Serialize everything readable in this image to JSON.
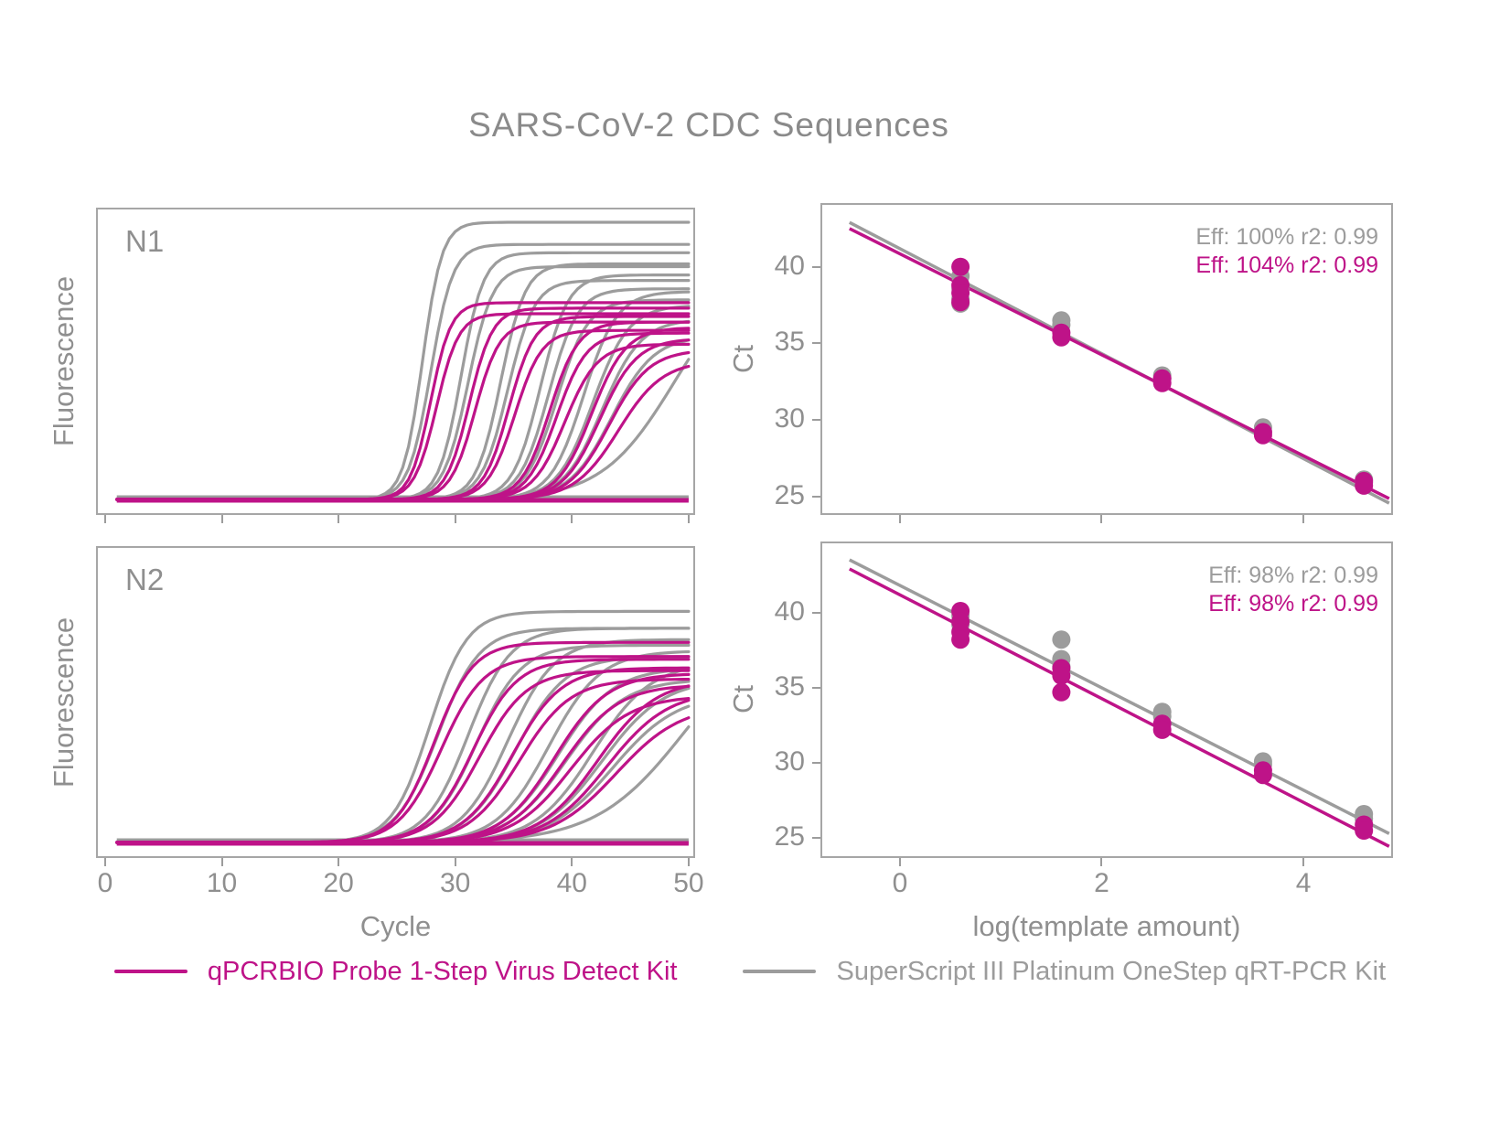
{
  "title": "SARS-CoV-2 CDC Sequences",
  "colors": {
    "magenta": "#BE1388",
    "gray": "#9C9C9C",
    "text_gray": "#8F8F8F",
    "panel_border": "#A6A6A6"
  },
  "legend": {
    "items": [
      {
        "key": "magenta",
        "label": "qPCRBIO Probe 1-Step Virus Detect Kit"
      },
      {
        "key": "gray",
        "label": "SuperScript III Platinum OneStep qRT-PCR Kit"
      }
    ]
  },
  "chart_data": [
    {
      "id": "amplification_n1",
      "type": "line",
      "panel_label": "N1",
      "xlabel": "Cycle",
      "ylabel": "Fluorescence",
      "xlim": [
        -0.62,
        50.4
      ],
      "xticks": [
        0,
        10,
        20,
        30,
        40,
        50
      ],
      "yticks": [],
      "grid": false,
      "curve_format": [
        "ct_midpoint_cycle",
        "steepness",
        "plateau_fraction"
      ],
      "series": [
        {
          "kit": "gray",
          "curves": [
            [
              27.2,
              1.2,
              1.0
            ],
            [
              27.9,
              1.05,
              0.92
            ],
            [
              30.5,
              1.05,
              0.89
            ],
            [
              31.1,
              0.95,
              0.84
            ],
            [
              33.9,
              0.95,
              0.85
            ],
            [
              34.5,
              0.88,
              0.79
            ],
            [
              37.3,
              0.85,
              0.81
            ],
            [
              38.0,
              0.8,
              0.76
            ],
            [
              38.7,
              0.75,
              0.72
            ],
            [
              41.0,
              0.7,
              0.75
            ],
            [
              41.8,
              0.65,
              0.7
            ],
            [
              42.6,
              0.6,
              0.65
            ],
            [
              43.4,
              0.55,
              0.59
            ],
            [
              48.8,
              0.32,
              0.85
            ]
          ],
          "flat_baselines": [
            -3,
            -1
          ]
        },
        {
          "kit": "magenta",
          "curves": [
            [
              27.9,
              1.15,
              0.71
            ],
            [
              28.4,
              1.05,
              0.67
            ],
            [
              31.2,
              1.0,
              0.69
            ],
            [
              31.7,
              0.95,
              0.64
            ],
            [
              34.6,
              0.92,
              0.66
            ],
            [
              35.1,
              0.86,
              0.61
            ],
            [
              38.1,
              0.82,
              0.64
            ],
            [
              38.7,
              0.78,
              0.6
            ],
            [
              39.4,
              0.72,
              0.56
            ],
            [
              41.7,
              0.68,
              0.62
            ],
            [
              42.4,
              0.63,
              0.58
            ],
            [
              43.2,
              0.58,
              0.54
            ],
            [
              44.0,
              0.53,
              0.5
            ]
          ],
          "flat_baselines": [
            0,
            2
          ]
        }
      ]
    },
    {
      "id": "standard_curve_n1",
      "type": "scatter",
      "xlabel": "log(template amount)",
      "ylabel": "Ct",
      "xlim": [
        -0.77,
        4.87
      ],
      "ylim": [
        23.9,
        44.05
      ],
      "xticks": [
        0,
        2,
        4
      ],
      "yticks": [
        25,
        30,
        35,
        40
      ],
      "grid": false,
      "annotations": [
        {
          "kit": "gray",
          "text": "Eff: 100% r2: 0.99"
        },
        {
          "kit": "magenta",
          "text": "Eff: 104% r2: 0.99"
        }
      ],
      "points_format": [
        "log_template_amount",
        "ct"
      ],
      "series": [
        {
          "kit": "gray",
          "points": [
            [
              0.6,
              39.4
            ],
            [
              0.6,
              38.6
            ],
            [
              0.6,
              37.9
            ],
            [
              0.6,
              37.6
            ],
            [
              1.6,
              36.5
            ],
            [
              1.6,
              36.2
            ],
            [
              2.6,
              32.9
            ],
            [
              2.6,
              32.7
            ],
            [
              3.6,
              29.5
            ],
            [
              3.6,
              29.2
            ],
            [
              4.6,
              26.1
            ],
            [
              4.6,
              25.9
            ]
          ],
          "fit_line": {
            "x": [
              -0.5,
              4.85
            ],
            "ct": [
              42.9,
              24.55
            ]
          }
        },
        {
          "kit": "magenta",
          "points": [
            [
              0.6,
              40.0
            ],
            [
              0.6,
              38.8
            ],
            [
              0.6,
              38.3
            ],
            [
              0.6,
              37.7
            ],
            [
              1.6,
              35.7
            ],
            [
              1.6,
              35.4
            ],
            [
              2.6,
              32.7
            ],
            [
              2.6,
              32.4
            ],
            [
              3.6,
              29.2
            ],
            [
              3.6,
              29.0
            ],
            [
              4.6,
              26.0
            ],
            [
              4.6,
              25.7
            ]
          ],
          "fit_line": {
            "x": [
              -0.5,
              4.85
            ],
            "ct": [
              42.5,
              24.85
            ]
          }
        }
      ]
    },
    {
      "id": "amplification_n2",
      "type": "line",
      "panel_label": "N2",
      "xlabel": "Cycle",
      "ylabel": "Fluorescence",
      "xlim": [
        -0.62,
        50.4
      ],
      "xticks": [
        0,
        10,
        20,
        30,
        40,
        50
      ],
      "yticks": [],
      "grid": false,
      "curve_format": [
        "ct_midpoint_cycle",
        "steepness",
        "plateau_fraction"
      ],
      "series": [
        {
          "kit": "gray",
          "curves": [
            [
              27.8,
              0.62,
              0.82
            ],
            [
              28.5,
              0.56,
              0.76
            ],
            [
              31.1,
              0.55,
              0.76
            ],
            [
              31.8,
              0.52,
              0.7
            ],
            [
              34.5,
              0.5,
              0.72
            ],
            [
              35.2,
              0.47,
              0.66
            ],
            [
              38.0,
              0.45,
              0.68
            ],
            [
              38.8,
              0.42,
              0.62
            ],
            [
              39.5,
              0.4,
              0.58
            ],
            [
              41.8,
              0.4,
              0.64
            ],
            [
              42.6,
              0.38,
              0.58
            ],
            [
              43.5,
              0.36,
              0.53
            ],
            [
              49.8,
              0.26,
              0.8
            ]
          ],
          "flat_baselines": [
            -3,
            -1
          ]
        },
        {
          "kit": "magenta",
          "curves": [
            [
              28.2,
              0.6,
              0.71
            ],
            [
              28.8,
              0.55,
              0.66
            ],
            [
              31.5,
              0.53,
              0.65
            ],
            [
              32.1,
              0.5,
              0.61
            ],
            [
              34.9,
              0.48,
              0.62
            ],
            [
              35.5,
              0.46,
              0.58
            ],
            [
              38.5,
              0.44,
              0.6
            ],
            [
              39.2,
              0.42,
              0.56
            ],
            [
              39.9,
              0.4,
              0.52
            ],
            [
              42.2,
              0.4,
              0.58
            ],
            [
              43.0,
              0.38,
              0.54
            ],
            [
              43.8,
              0.36,
              0.49
            ]
          ],
          "flat_baselines": [
            0,
            2
          ]
        }
      ]
    },
    {
      "id": "standard_curve_n2",
      "type": "scatter",
      "xlabel": "log(template amount)",
      "ylabel": "Ct",
      "xlim": [
        -0.77,
        4.87
      ],
      "ylim": [
        23.8,
        44.6
      ],
      "xticks": [
        0,
        2,
        4
      ],
      "yticks": [
        25,
        30,
        35,
        40
      ],
      "grid": false,
      "annotations": [
        {
          "kit": "gray",
          "text": "Eff: 98% r2: 0.99"
        },
        {
          "kit": "magenta",
          "text": "Eff: 98% r2: 0.99"
        }
      ],
      "points_format": [
        "log_template_amount",
        "ct"
      ],
      "series": [
        {
          "kit": "gray",
          "points": [
            [
              0.6,
              39.8
            ],
            [
              0.6,
              39.2
            ],
            [
              1.6,
              38.2
            ],
            [
              1.6,
              36.9
            ],
            [
              1.6,
              36.4
            ],
            [
              2.6,
              33.4
            ],
            [
              2.6,
              33.1
            ],
            [
              3.6,
              30.1
            ],
            [
              3.6,
              29.9
            ],
            [
              4.6,
              26.6
            ],
            [
              4.6,
              26.3
            ]
          ],
          "fit_line": {
            "x": [
              -0.5,
              4.85
            ],
            "ct": [
              43.5,
              25.3
            ]
          }
        },
        {
          "kit": "magenta",
          "points": [
            [
              0.6,
              40.1
            ],
            [
              0.6,
              39.4
            ],
            [
              0.6,
              38.7
            ],
            [
              0.6,
              38.2
            ],
            [
              1.6,
              36.3
            ],
            [
              1.6,
              35.8
            ],
            [
              1.6,
              34.7
            ],
            [
              2.6,
              32.6
            ],
            [
              2.6,
              32.2
            ],
            [
              3.6,
              29.5
            ],
            [
              3.6,
              29.2
            ],
            [
              4.6,
              25.9
            ],
            [
              4.6,
              25.5
            ]
          ],
          "fit_line": {
            "x": [
              -0.5,
              4.85
            ],
            "ct": [
              42.9,
              24.45
            ]
          }
        }
      ]
    }
  ]
}
